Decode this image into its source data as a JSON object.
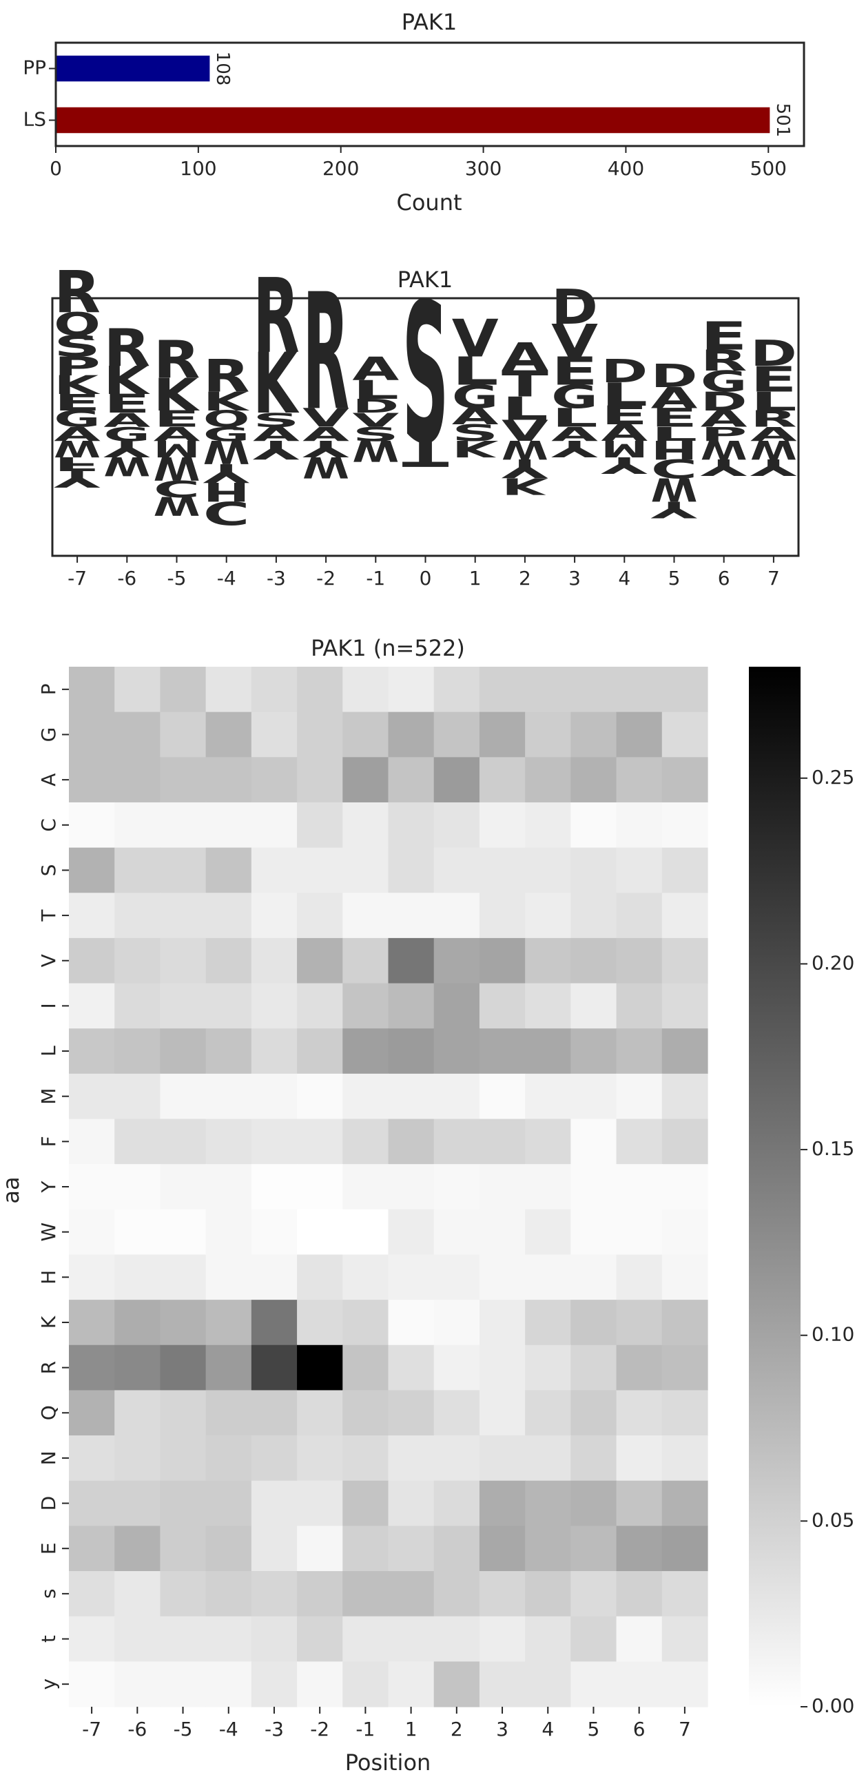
{
  "chart_data": [
    {
      "type": "bar",
      "orientation": "horizontal",
      "title": "PAK1",
      "xlabel": "Count",
      "ylabel": "",
      "categories": [
        "PP",
        "LS"
      ],
      "values": [
        108,
        501
      ],
      "data_labels": [
        "108",
        "501"
      ],
      "colors": [
        "#00008b",
        "#8b0000"
      ],
      "xlim": [
        0,
        525
      ],
      "xticks": [
        0,
        100,
        200,
        300,
        400,
        500
      ],
      "xtick_labels": [
        "0",
        "100",
        "200",
        "300",
        "400",
        "500"
      ]
    },
    {
      "type": "sequence_logo",
      "title": "PAK1",
      "positions": [
        "-7",
        "-6",
        "-5",
        "-4",
        "-3",
        "-2",
        "-1",
        "0",
        "1",
        "2",
        "3",
        "4",
        "5",
        "6",
        "7"
      ],
      "color_scheme": {
        "basic": "#0000ff",
        "acidic": "#dc143c",
        "hydrophobic": "#daa520",
        "polar": "#008000",
        "phospho": "#8b008b",
        "aromatic": "#9932cc",
        "special": "#000000",
        "other": "#8b4513"
      },
      "columns": [
        {
          "position": "-7",
          "above": [
            [
              "R",
              0.9
            ],
            [
              "Q",
              0.5
            ],
            [
              "S",
              0.45
            ],
            [
              "K",
              0.4
            ],
            [
              "P",
              0.4
            ],
            [
              "G",
              0.35
            ],
            [
              "A",
              0.3
            ],
            [
              "E",
              0.35
            ]
          ],
          "below": [
            [
              "W",
              0.35
            ],
            [
              "F",
              0.3
            ],
            [
              "Y",
              0.35
            ]
          ]
        },
        {
          "position": "-6",
          "above": [
            [
              "R",
              0.8
            ],
            [
              "K",
              0.6
            ],
            [
              "E",
              0.4
            ],
            [
              "G",
              0.3
            ],
            [
              "A",
              0.3
            ]
          ],
          "below": [
            [
              "Y",
              0.35
            ],
            [
              "W",
              0.4
            ]
          ]
        },
        {
          "position": "-5",
          "above": [
            [
              "R",
              0.8
            ],
            [
              "K",
              0.7
            ],
            [
              "E",
              0.35
            ],
            [
              "A",
              0.3
            ]
          ],
          "below": [
            [
              "M",
              0.35
            ],
            [
              "W",
              0.5
            ],
            [
              "C",
              0.35
            ],
            [
              "W",
              0.4
            ]
          ]
        },
        {
          "position": "-4",
          "above": [
            [
              "R",
              0.7
            ],
            [
              "K",
              0.4
            ],
            [
              "Q",
              0.35
            ],
            [
              "G",
              0.3
            ]
          ],
          "below": [
            [
              "W",
              0.5
            ],
            [
              "Y",
              0.4
            ],
            [
              "H",
              0.4
            ],
            [
              "C",
              0.5
            ]
          ]
        },
        {
          "position": "-3",
          "above": [
            [
              "R",
              1.6
            ],
            [
              "K",
              1.3
            ],
            [
              "A",
              0.3
            ],
            [
              "S",
              0.3
            ]
          ],
          "below": [
            [
              "Y",
              0.4
            ]
          ]
        },
        {
          "position": "-2",
          "above": [
            [
              "R",
              2.5
            ],
            [
              "V",
              0.4
            ],
            [
              "A",
              0.3
            ]
          ],
          "below": [
            [
              "Y",
              0.35
            ],
            [
              "W",
              0.45
            ]
          ]
        },
        {
          "position": "-1",
          "above": [
            [
              "L",
              0.4
            ],
            [
              "A",
              0.5
            ],
            [
              "S",
              0.3
            ],
            [
              "V",
              0.3
            ],
            [
              "D",
              0.3
            ]
          ],
          "below": [
            [
              "W",
              0.45
            ]
          ]
        },
        {
          "position": "0",
          "above": [
            [
              "S",
              3.0
            ]
          ],
          "below": [
            [
              "T",
              0.55
            ]
          ]
        },
        {
          "position": "1",
          "above": [
            [
              "V",
              0.8
            ],
            [
              "L",
              0.6
            ],
            [
              "G",
              0.5
            ],
            [
              "S",
              0.35
            ],
            [
              "A",
              0.35
            ]
          ],
          "below": [
            [
              "K",
              0.35
            ]
          ]
        },
        {
          "position": "2",
          "above": [
            [
              "A",
              0.6
            ],
            [
              "L",
              0.5
            ],
            [
              "T",
              0.55
            ],
            [
              "V",
              0.45
            ]
          ],
          "below": [
            [
              "W",
              0.4
            ],
            [
              "Y",
              0.4
            ],
            [
              "K",
              0.35
            ]
          ]
        },
        {
          "position": "3",
          "above": [
            [
              "D",
              0.75
            ],
            [
              "V",
              0.7
            ],
            [
              "E",
              0.6
            ],
            [
              "G",
              0.5
            ],
            [
              "L",
              0.4
            ],
            [
              "A",
              0.3
            ]
          ],
          "below": [
            [
              "Y",
              0.35
            ]
          ]
        },
        {
          "position": "4",
          "above": [
            [
              "L",
              0.5
            ],
            [
              "D",
              0.5
            ],
            [
              "E",
              0.4
            ],
            [
              "A",
              0.35
            ]
          ],
          "below": [
            [
              "M",
              0.35
            ],
            [
              "Y",
              0.35
            ]
          ]
        },
        {
          "position": "5",
          "above": [
            [
              "D",
              0.5
            ],
            [
              "A",
              0.45
            ],
            [
              "E",
              0.4
            ],
            [
              "L",
              0.3
            ]
          ],
          "below": [
            [
              "H",
              0.4
            ],
            [
              "C",
              0.4
            ],
            [
              "W",
              0.5
            ],
            [
              "Y",
              0.35
            ]
          ]
        },
        {
          "position": "6",
          "above": [
            [
              "E",
              0.6
            ],
            [
              "G",
              0.45
            ],
            [
              "R",
              0.45
            ],
            [
              "D",
              0.4
            ],
            [
              "A",
              0.35
            ],
            [
              "P",
              0.3
            ]
          ],
          "below": [
            [
              "W",
              0.4
            ],
            [
              "Y",
              0.35
            ]
          ]
        },
        {
          "position": "7",
          "above": [
            [
              "E",
              0.55
            ],
            [
              "D",
              0.55
            ],
            [
              "L",
              0.4
            ],
            [
              "R",
              0.35
            ],
            [
              "A",
              0.3
            ]
          ],
          "below": [
            [
              "W",
              0.4
            ],
            [
              "Y",
              0.35
            ]
          ]
        }
      ]
    },
    {
      "type": "heatmap",
      "title": "PAK1 (n=522)",
      "xlabel": "Position",
      "ylabel": "aa",
      "x": [
        "-7",
        "-6",
        "-5",
        "-4",
        "-3",
        "-2",
        "-1",
        "1",
        "2",
        "3",
        "4",
        "5",
        "6",
        "7"
      ],
      "y": [
        "P",
        "G",
        "A",
        "C",
        "S",
        "T",
        "V",
        "I",
        "L",
        "M",
        "F",
        "Y",
        "W",
        "H",
        "K",
        "R",
        "Q",
        "N",
        "D",
        "E",
        "s",
        "t",
        "y"
      ],
      "values": [
        [
          0.07,
          0.04,
          0.06,
          0.03,
          0.04,
          0.05,
          0.025,
          0.02,
          0.04,
          0.05,
          0.05,
          0.05,
          0.05,
          0.05
        ],
        [
          0.07,
          0.07,
          0.05,
          0.08,
          0.035,
          0.05,
          0.06,
          0.09,
          0.065,
          0.09,
          0.055,
          0.07,
          0.09,
          0.04
        ],
        [
          0.07,
          0.07,
          0.065,
          0.065,
          0.06,
          0.05,
          0.105,
          0.065,
          0.11,
          0.055,
          0.07,
          0.085,
          0.065,
          0.07
        ],
        [
          0.005,
          0.01,
          0.01,
          0.01,
          0.01,
          0.035,
          0.02,
          0.035,
          0.03,
          0.015,
          0.02,
          0.005,
          0.01,
          0.008
        ],
        [
          0.085,
          0.045,
          0.045,
          0.065,
          0.02,
          0.02,
          0.02,
          0.035,
          0.025,
          0.025,
          0.025,
          0.03,
          0.025,
          0.035
        ],
        [
          0.02,
          0.03,
          0.03,
          0.03,
          0.015,
          0.025,
          0.01,
          0.01,
          0.01,
          0.025,
          0.02,
          0.03,
          0.035,
          0.02
        ],
        [
          0.055,
          0.045,
          0.04,
          0.05,
          0.03,
          0.085,
          0.05,
          0.15,
          0.095,
          0.1,
          0.06,
          0.065,
          0.06,
          0.045
        ],
        [
          0.015,
          0.04,
          0.035,
          0.035,
          0.025,
          0.035,
          0.065,
          0.075,
          0.1,
          0.045,
          0.035,
          0.02,
          0.05,
          0.04
        ],
        [
          0.06,
          0.065,
          0.075,
          0.065,
          0.04,
          0.055,
          0.105,
          0.11,
          0.1,
          0.095,
          0.095,
          0.08,
          0.07,
          0.09
        ],
        [
          0.025,
          0.025,
          0.01,
          0.01,
          0.01,
          0.005,
          0.015,
          0.015,
          0.015,
          0.005,
          0.015,
          0.015,
          0.01,
          0.03
        ],
        [
          0.01,
          0.035,
          0.035,
          0.03,
          0.025,
          0.025,
          0.04,
          0.06,
          0.045,
          0.045,
          0.04,
          0.005,
          0.035,
          0.045
        ],
        [
          0.005,
          0.005,
          0.01,
          0.01,
          0.002,
          0.002,
          0.01,
          0.01,
          0.008,
          0.01,
          0.01,
          0.005,
          0.005,
          0.005
        ],
        [
          0.008,
          0.003,
          0.003,
          0.01,
          0.005,
          0.0,
          0.0,
          0.02,
          0.01,
          0.01,
          0.02,
          0.005,
          0.005,
          0.008
        ],
        [
          0.015,
          0.02,
          0.02,
          0.01,
          0.01,
          0.03,
          0.02,
          0.015,
          0.015,
          0.01,
          0.01,
          0.01,
          0.02,
          0.01
        ],
        [
          0.075,
          0.09,
          0.085,
          0.075,
          0.15,
          0.04,
          0.045,
          0.005,
          0.008,
          0.02,
          0.045,
          0.06,
          0.055,
          0.065
        ],
        [
          0.125,
          0.13,
          0.145,
          0.11,
          0.205,
          0.28,
          0.065,
          0.035,
          0.015,
          0.02,
          0.03,
          0.045,
          0.075,
          0.07
        ],
        [
          0.085,
          0.04,
          0.045,
          0.055,
          0.055,
          0.04,
          0.055,
          0.05,
          0.035,
          0.02,
          0.04,
          0.055,
          0.035,
          0.04
        ],
        [
          0.035,
          0.04,
          0.045,
          0.05,
          0.045,
          0.035,
          0.04,
          0.025,
          0.025,
          0.03,
          0.03,
          0.045,
          0.02,
          0.025
        ],
        [
          0.05,
          0.05,
          0.055,
          0.055,
          0.025,
          0.025,
          0.065,
          0.03,
          0.04,
          0.09,
          0.08,
          0.085,
          0.065,
          0.085
        ],
        [
          0.065,
          0.085,
          0.055,
          0.06,
          0.025,
          0.01,
          0.05,
          0.045,
          0.055,
          0.095,
          0.08,
          0.075,
          0.1,
          0.105
        ],
        [
          0.035,
          0.025,
          0.045,
          0.05,
          0.045,
          0.055,
          0.07,
          0.07,
          0.055,
          0.045,
          0.055,
          0.04,
          0.05,
          0.04
        ],
        [
          0.02,
          0.025,
          0.025,
          0.025,
          0.03,
          0.045,
          0.025,
          0.025,
          0.025,
          0.02,
          0.03,
          0.045,
          0.01,
          0.03
        ],
        [
          0.005,
          0.01,
          0.01,
          0.01,
          0.025,
          0.01,
          0.03,
          0.02,
          0.065,
          0.03,
          0.03,
          0.015,
          0.015,
          0.015
        ]
      ],
      "colorbar": {
        "min": 0.0,
        "max": 0.28,
        "ticks": [
          0.0,
          0.05,
          0.1,
          0.15,
          0.2,
          0.25
        ],
        "tick_labels": [
          "0.00",
          "0.05",
          "0.10",
          "0.15",
          "0.20",
          "0.25"
        ],
        "cmap": "Greys"
      }
    }
  ]
}
